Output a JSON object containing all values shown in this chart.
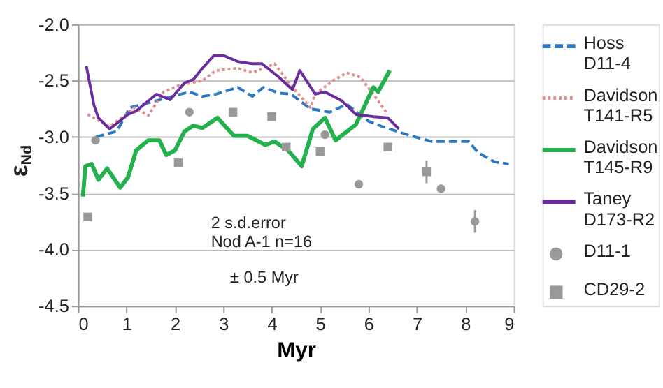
{
  "chart_data": {
    "type": "line",
    "xlabel": "Myr",
    "ylabel": "ε$_{Nd}$",
    "xlim": [
      0,
      9
    ],
    "xticks": [
      0,
      1,
      2,
      3,
      4,
      5,
      6,
      7,
      8,
      9
    ],
    "ylim": [
      -4.5,
      -2.0
    ],
    "yticks": [
      {
        "value": -4.5,
        "label": "-4.5"
      },
      {
        "value": -4.0,
        "label": "-4.0"
      },
      {
        "value": -3.5,
        "label": "-3.5"
      },
      {
        "value": -3.0,
        "label": "-3.0"
      },
      {
        "value": -2.5,
        "label": "-2.5"
      },
      {
        "value": -2.0,
        "label": "-2.0"
      }
    ],
    "grid": "y",
    "legend": "right",
    "annotations": [
      "2 s.d.error\nNod A-1 n=16",
      "± 0.5 Myr"
    ],
    "series": [
      {
        "name": "Hoss D11-4",
        "type": "line",
        "line_style": "dashed",
        "color": "#2a78c2",
        "x": [
          0.37,
          0.8,
          1.07,
          1.6,
          2.3,
          2.57,
          2.85,
          3.3,
          3.6,
          3.83,
          4.15,
          4.4,
          4.8,
          5.2,
          5.55,
          5.7,
          6.0,
          6.3,
          6.8,
          7.3,
          8.07,
          8.27,
          8.6,
          8.9
        ],
        "values": [
          -3.0,
          -2.95,
          -2.74,
          -2.68,
          -2.6,
          -2.64,
          -2.62,
          -2.56,
          -2.64,
          -2.56,
          -2.61,
          -2.62,
          -2.75,
          -2.78,
          -2.71,
          -2.76,
          -2.86,
          -2.91,
          -2.98,
          -3.04,
          -3.04,
          -3.14,
          -3.22,
          -3.24
        ]
      },
      {
        "name": "Davidson T141-R5",
        "type": "line",
        "line_style": "dotted",
        "color": "#e0908c",
        "x": [
          0.2,
          0.65,
          1.17,
          1.45,
          1.77,
          2.1,
          2.57,
          2.85,
          3.3,
          3.6,
          4.06,
          4.43,
          4.8,
          4.9,
          5.27,
          5.55,
          5.83,
          6.1,
          6.4
        ],
        "values": [
          -2.8,
          -2.91,
          -2.74,
          -2.81,
          -2.6,
          -2.54,
          -2.5,
          -2.41,
          -2.39,
          -2.43,
          -2.35,
          -2.56,
          -2.74,
          -2.62,
          -2.5,
          -2.43,
          -2.47,
          -2.62,
          -2.8
        ]
      },
      {
        "name": "Davidson T145-R9",
        "type": "line",
        "line_style": "solid",
        "color": "#22b14c",
        "x": [
          0.1,
          0.15,
          0.28,
          0.42,
          0.6,
          0.87,
          1.03,
          1.2,
          1.45,
          1.68,
          1.82,
          2.0,
          2.2,
          2.38,
          2.57,
          2.88,
          3.22,
          3.5,
          3.87,
          4.06,
          4.34,
          4.62,
          4.85,
          5.1,
          5.32,
          5.74,
          6.1,
          6.2,
          6.44
        ],
        "values": [
          -3.53,
          -3.26,
          -3.24,
          -3.38,
          -3.28,
          -3.45,
          -3.36,
          -3.12,
          -3.03,
          -3.03,
          -3.16,
          -3.12,
          -2.95,
          -2.9,
          -2.92,
          -2.83,
          -2.99,
          -2.99,
          -3.07,
          -3.04,
          -3.12,
          -3.26,
          -2.93,
          -2.83,
          -3.03,
          -2.89,
          -2.56,
          -2.6,
          -2.41
        ]
      },
      {
        "name": "Taney D173-R2",
        "type": "line",
        "line_style": "solid",
        "color": "#6a2c9e",
        "x": [
          0.17,
          0.33,
          0.42,
          0.65,
          1.03,
          1.2,
          1.62,
          1.9,
          2.2,
          2.38,
          2.57,
          2.8,
          3.02,
          3.3,
          3.6,
          3.8,
          4.15,
          4.43,
          4.58,
          4.9,
          5.1,
          5.45,
          5.74,
          6.1,
          6.4,
          6.63
        ],
        "values": [
          -2.37,
          -2.72,
          -2.83,
          -2.93,
          -2.8,
          -2.77,
          -2.62,
          -2.67,
          -2.52,
          -2.49,
          -2.39,
          -2.28,
          -2.28,
          -2.33,
          -2.35,
          -2.35,
          -2.47,
          -2.58,
          -2.41,
          -2.62,
          -2.6,
          -2.68,
          -2.8,
          -2.82,
          -2.83,
          -2.93
        ]
      },
      {
        "name": "D11-1",
        "type": "scatter",
        "marker": "circle",
        "color": "#999999",
        "x": [
          0.36,
          2.3,
          5.1,
          5.8,
          7.5,
          8.2
        ],
        "values": [
          -3.03,
          -2.78,
          -2.98,
          -3.42,
          -3.46,
          -3.75
        ],
        "errors": [
          null,
          null,
          null,
          null,
          null,
          0.1
        ]
      },
      {
        "name": "CD29-2",
        "type": "scatter",
        "marker": "square",
        "color": "#999999",
        "x": [
          0.2,
          2.07,
          3.2,
          4.0,
          4.3,
          5.0,
          6.4,
          7.2
        ],
        "values": [
          -3.71,
          -3.23,
          -2.78,
          -2.82,
          -3.09,
          -3.13,
          -3.09,
          -3.31
        ],
        "errors": [
          null,
          null,
          null,
          null,
          null,
          null,
          null,
          0.1
        ]
      }
    ]
  }
}
